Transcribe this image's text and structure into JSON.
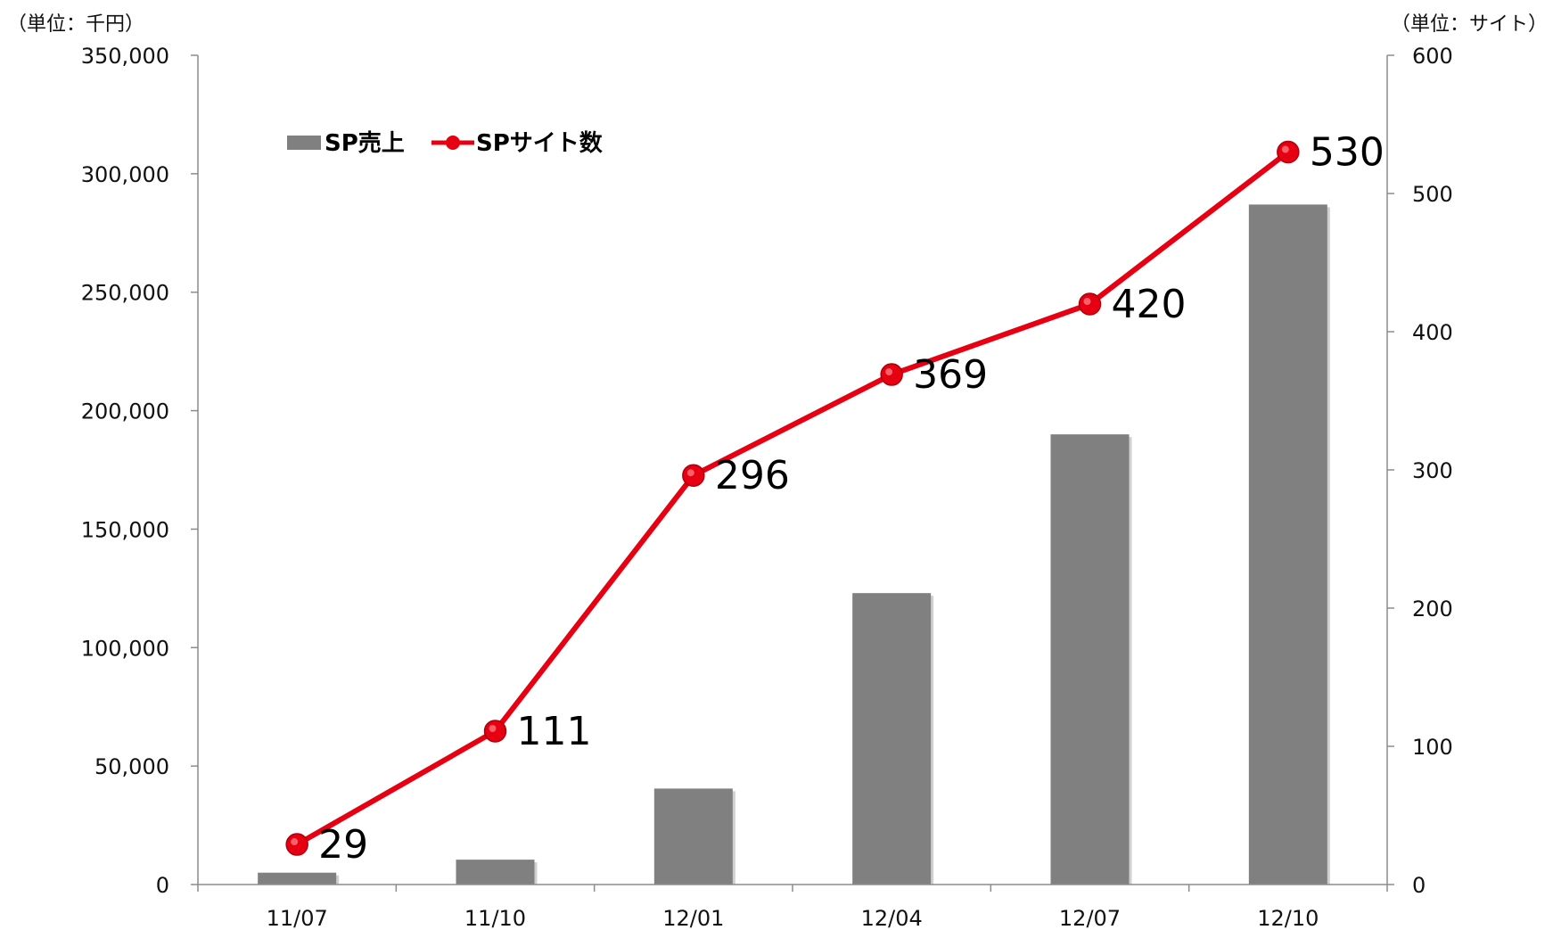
{
  "chart_data": {
    "type": "bar+line",
    "categories": [
      "11/07",
      "11/10",
      "12/01",
      "12/04",
      "12/07",
      "12/10"
    ],
    "left_unit": "（単位：千円）",
    "right_unit": "（単位：サイト）",
    "y_left": {
      "lim": [
        0,
        350000
      ],
      "ticks": [
        "0",
        "50,000",
        "100,000",
        "150,000",
        "200,000",
        "250,000",
        "300,000",
        "350,000"
      ],
      "tick_values": [
        0,
        50000,
        100000,
        150000,
        200000,
        250000,
        300000,
        350000
      ]
    },
    "y_right": {
      "lim": [
        0,
        600
      ],
      "ticks": [
        "0",
        "100",
        "200",
        "300",
        "400",
        "500",
        "600"
      ],
      "tick_values": [
        0,
        100,
        200,
        300,
        400,
        500,
        600
      ]
    },
    "series": [
      {
        "name": "SP売上",
        "type": "bar",
        "axis": "left",
        "color": "#808080",
        "values": [
          5000,
          10500,
          40500,
          123000,
          190000,
          287000
        ]
      },
      {
        "name": "SPサイト数",
        "type": "line",
        "axis": "right",
        "color": "#e60012",
        "values": [
          29,
          111,
          296,
          369,
          420,
          530
        ],
        "labels": [
          "29",
          "111",
          "296",
          "369",
          "420",
          "530"
        ]
      }
    ],
    "legend_position": "top-left",
    "grid": false
  }
}
